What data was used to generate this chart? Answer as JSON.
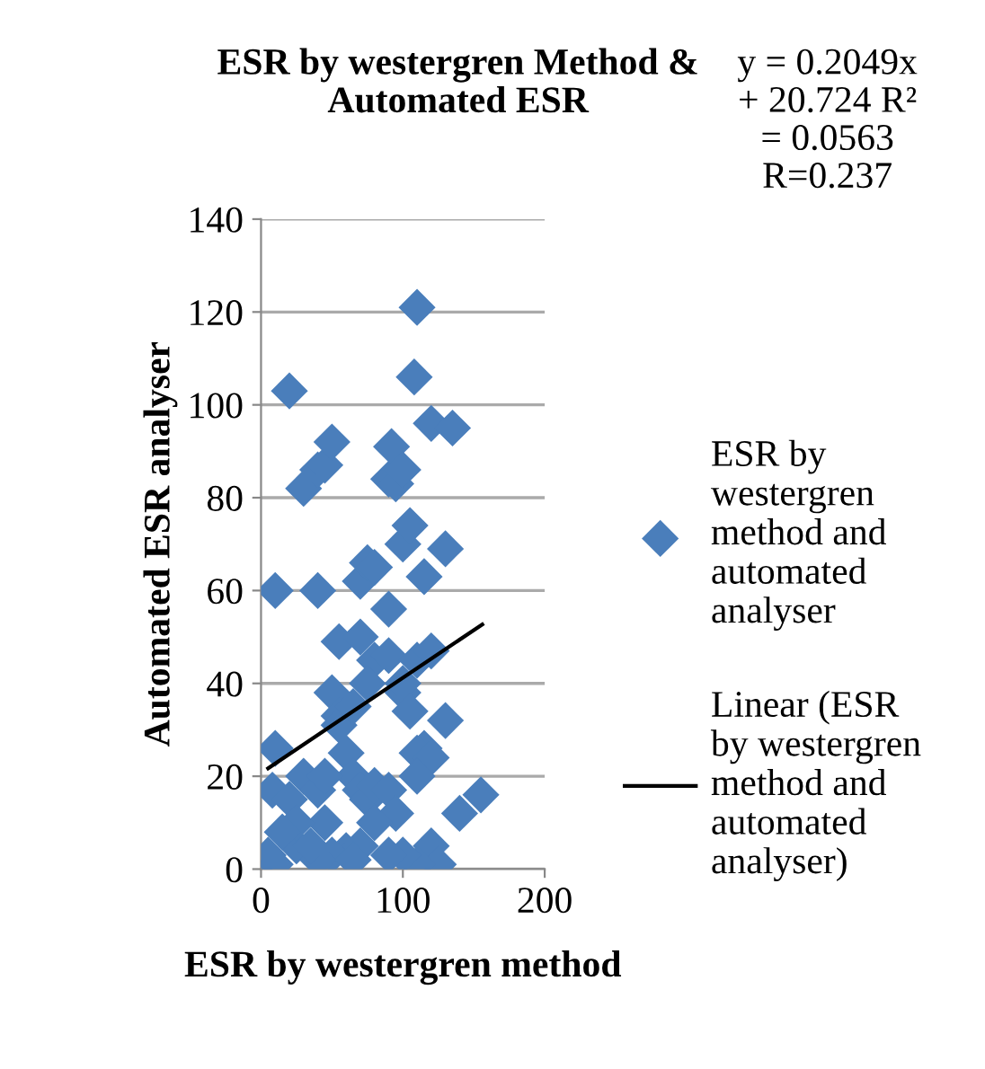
{
  "chart_data": {
    "type": "scatter",
    "title": "ESR by westergren Method & Automated ESR",
    "xlabel": "ESR by westergren method",
    "ylabel": "Automated ESR analyser",
    "annotations": [
      "y = 0.2049x + 20.724 R² = 0.0563 R=0.237"
    ],
    "xlim": [
      0,
      200
    ],
    "xticks": [
      0,
      100,
      200
    ],
    "ylim": [
      0,
      140
    ],
    "yticks": [
      0,
      20,
      40,
      60,
      80,
      100,
      120,
      140
    ],
    "grid": "y",
    "legend": "right",
    "series": [
      {
        "name": "ESR by westergren method and automated analyser",
        "marker": "diamond",
        "color": "#4a7ebb",
        "x": [
          10,
          20,
          30,
          40,
          45,
          50,
          70,
          75,
          80,
          90,
          92,
          95,
          100,
          100,
          105,
          110,
          108,
          115,
          120,
          135,
          130,
          90,
          55,
          70,
          80,
          90,
          100,
          110,
          120,
          115,
          110,
          120,
          130,
          140,
          155,
          120,
          125,
          110,
          100,
          90,
          5,
          10,
          8,
          10,
          20,
          25,
          30,
          40,
          45,
          50,
          55,
          60,
          65,
          70,
          75,
          80,
          90,
          95,
          100,
          60,
          70,
          50,
          40,
          25,
          40,
          45,
          55,
          65,
          75,
          105,
          110,
          15,
          35,
          65,
          80
        ],
        "values": [
          60,
          103,
          82,
          86,
          87,
          92,
          62,
          66,
          65,
          84,
          91,
          83,
          86,
          70,
          74,
          121,
          106,
          63,
          96,
          95,
          69,
          56,
          49,
          50,
          45,
          46,
          38,
          45,
          47,
          26,
          25,
          24,
          32,
          12,
          16,
          5,
          1,
          1,
          3,
          3,
          3,
          1,
          17,
          26,
          15,
          5,
          20,
          17,
          10,
          38,
          33,
          25,
          20,
          17,
          15,
          18,
          17,
          12,
          40,
          4,
          5,
          3,
          2,
          10,
          60,
          20,
          31,
          35,
          40,
          34,
          20,
          8,
          5,
          2,
          10
        ]
      },
      {
        "name": "Linear (ESR by westergren method and automated analyser)",
        "type": "line",
        "color": "#000000",
        "line_style": "solid",
        "marker": "none",
        "x": [
          5,
          156
        ],
        "values": [
          21.7,
          52.7
        ]
      }
    ]
  }
}
